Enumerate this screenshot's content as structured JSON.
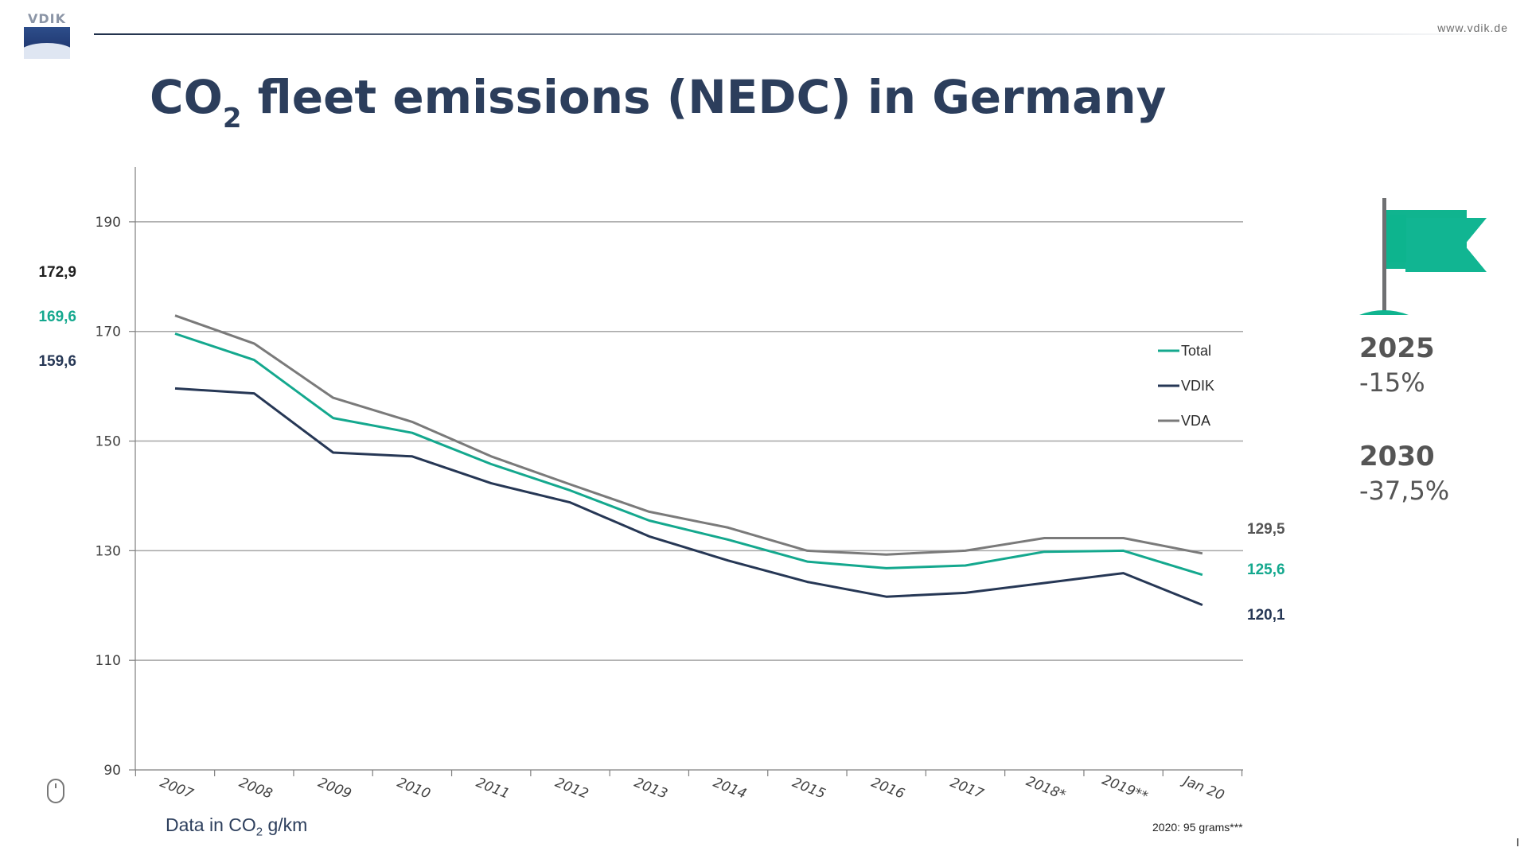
{
  "header": {
    "logo_text": "VDIK",
    "url": "www.vdik.de",
    "title_prefix": "CO",
    "title_subscript": "2",
    "title_rest": " fleet emissions (NEDC) in Germany"
  },
  "chart_data": {
    "type": "line",
    "x": [
      "2007",
      "2008",
      "2009",
      "2010",
      "2011",
      "2012",
      "2013",
      "2014",
      "2015",
      "2016",
      "2017",
      "2018*",
      "2019**",
      "Jan 20"
    ],
    "y_ticks": [
      90,
      110,
      130,
      150,
      170,
      190
    ],
    "ylim": [
      90,
      200
    ],
    "grid": true,
    "legend_position": "right",
    "series": [
      {
        "name": "Total",
        "color": "#14a88e",
        "values": [
          169.6,
          164.8,
          154.2,
          151.5,
          145.8,
          141.0,
          135.5,
          132.0,
          128.0,
          126.8,
          127.3,
          129.8,
          130.0,
          125.6
        ]
      },
      {
        "name": "VDIK",
        "color": "#263755",
        "values": [
          159.6,
          158.7,
          147.9,
          147.2,
          142.3,
          138.8,
          132.6,
          128.2,
          124.3,
          121.6,
          122.3,
          124.1,
          125.9,
          120.1
        ]
      },
      {
        "name": "VDA",
        "color": "#7a7a7a",
        "values": [
          172.9,
          167.8,
          157.9,
          153.5,
          147.2,
          142.1,
          137.1,
          134.2,
          130.0,
          129.3,
          130.0,
          132.3,
          132.3,
          129.5
        ]
      }
    ],
    "start_labels": [
      {
        "text": "172,9",
        "color": "#1e1e1e"
      },
      {
        "text": "169,6",
        "color": "#14a88e"
      },
      {
        "text": "159,6",
        "color": "#263755"
      }
    ],
    "end_labels": [
      {
        "text": "129,5",
        "color": "#555555"
      },
      {
        "text": "125,6",
        "color": "#14a88e"
      },
      {
        "text": "120,1",
        "color": "#263755"
      }
    ]
  },
  "axis_note": {
    "prefix": "Data in CO",
    "subscript": "2",
    "suffix": " g/km"
  },
  "note_2020": "2020: 95 grams***",
  "targets": [
    {
      "year": "2025",
      "pct": "-15%"
    },
    {
      "year": "2030",
      "pct": "-37,5%"
    }
  ],
  "icons": {
    "flag": "flag-icon",
    "mouse": "mouse-icon"
  },
  "colors": {
    "title": "#2c3e5c",
    "accent_green": "#14a88e",
    "flag_green": "#10b48f"
  }
}
